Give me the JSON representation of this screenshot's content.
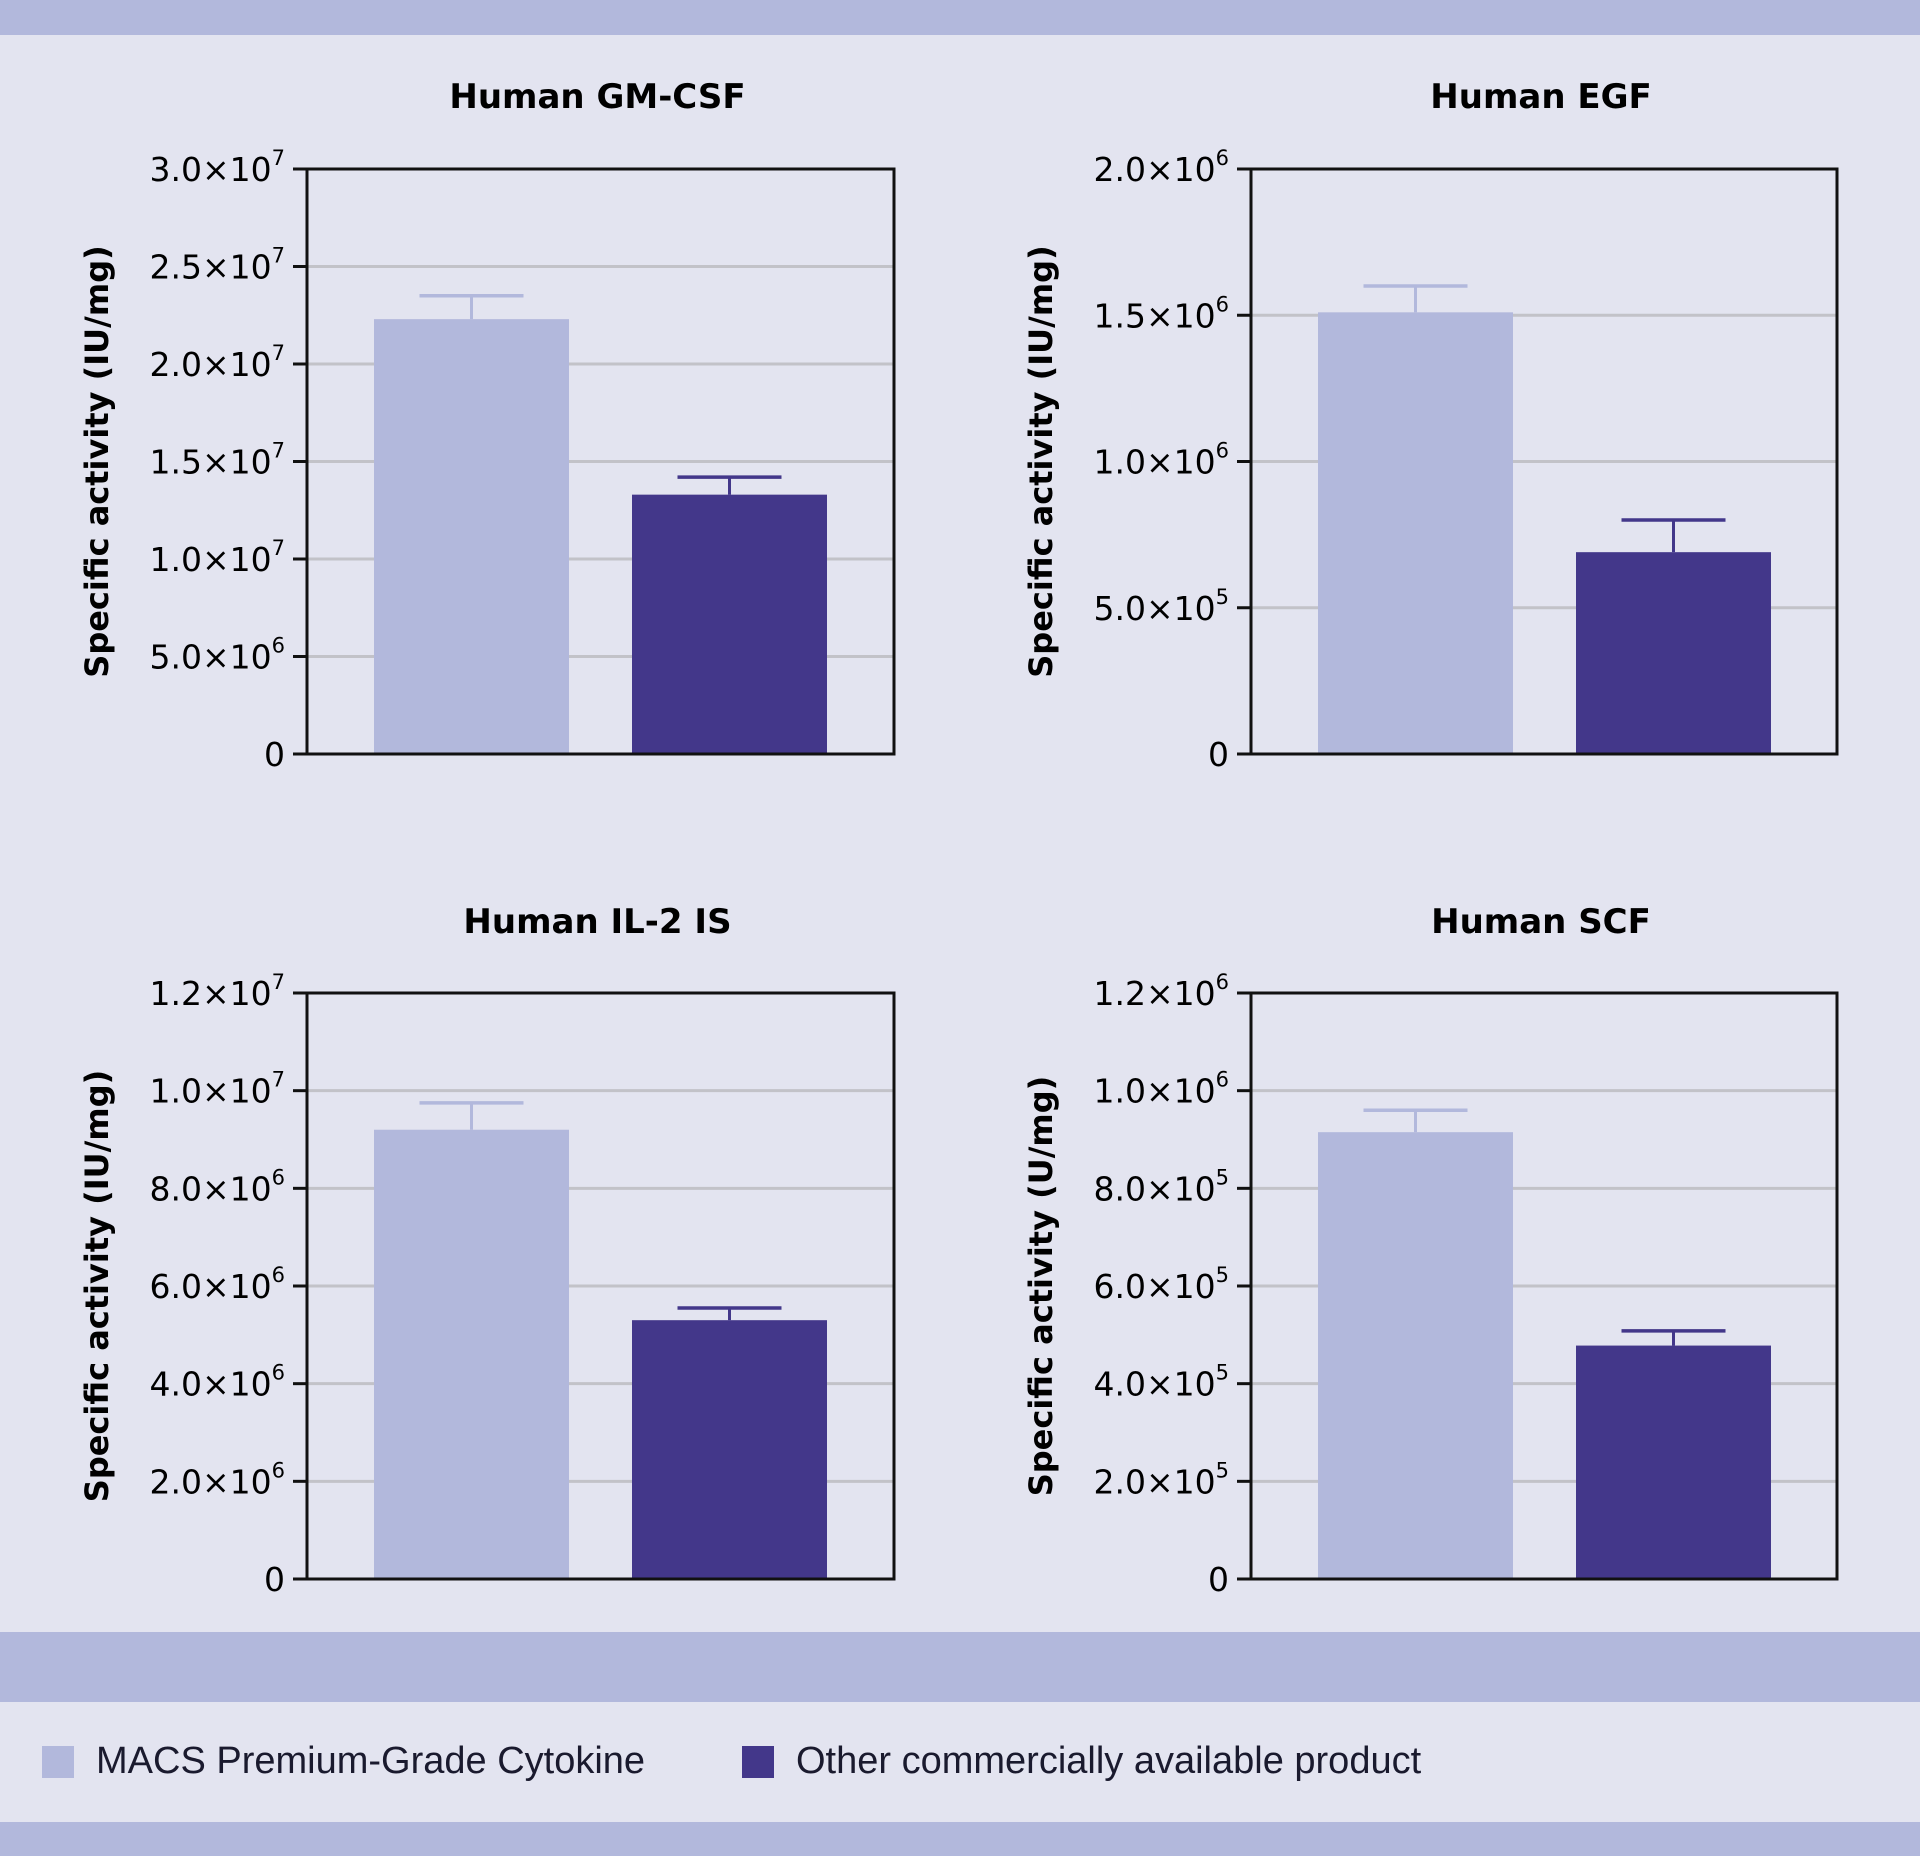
{
  "colors": {
    "background": "#e3e4f0",
    "band": "#b2b8dc",
    "series_light": "#b2b8dc",
    "series_dark": "#43378a",
    "gridline": "#c2c2c8",
    "axis": "#111111"
  },
  "legend": {
    "items": [
      {
        "label": "MACS Premium-Grade Cytokine",
        "color": "#b2b8dc"
      },
      {
        "label": "Other commercially available product",
        "color": "#43378a"
      }
    ]
  },
  "chart_data": [
    {
      "type": "bar",
      "title": "Human GM-CSF",
      "ylabel": "Specific activity (IU/mg)",
      "xlabel": "",
      "ylim": [
        0,
        30000000
      ],
      "yticks": [
        {
          "value": 0,
          "mantissa": "0",
          "exp": ""
        },
        {
          "value": 5000000,
          "mantissa": "5.0×10",
          "exp": "6"
        },
        {
          "value": 10000000,
          "mantissa": "1.0×10",
          "exp": "7"
        },
        {
          "value": 15000000,
          "mantissa": "1.5×10",
          "exp": "7"
        },
        {
          "value": 20000000,
          "mantissa": "2.0×10",
          "exp": "7"
        },
        {
          "value": 25000000,
          "mantissa": "2.5×10",
          "exp": "7"
        },
        {
          "value": 30000000,
          "mantissa": "3.0×10",
          "exp": "7"
        }
      ],
      "series": [
        {
          "name": "MACS Premium-Grade Cytokine",
          "value": 22300000,
          "error": 1200000
        },
        {
          "name": "Other commercially available product",
          "value": 13300000,
          "error": 900000
        }
      ]
    },
    {
      "type": "bar",
      "title": "Human EGF",
      "ylabel": "Specific activity (IU/mg)",
      "xlabel": "",
      "ylim": [
        0,
        2000000
      ],
      "yticks": [
        {
          "value": 0,
          "mantissa": "0",
          "exp": ""
        },
        {
          "value": 500000,
          "mantissa": "5.0×10",
          "exp": "5"
        },
        {
          "value": 1000000,
          "mantissa": "1.0×10",
          "exp": "6"
        },
        {
          "value": 1500000,
          "mantissa": "1.5×10",
          "exp": "6"
        },
        {
          "value": 2000000,
          "mantissa": "2.0×10",
          "exp": "6"
        }
      ],
      "series": [
        {
          "name": "MACS Premium-Grade Cytokine",
          "value": 1510000,
          "error": 90000
        },
        {
          "name": "Other commercially available product",
          "value": 690000,
          "error": 110000
        }
      ]
    },
    {
      "type": "bar",
      "title": "Human IL-2 IS",
      "ylabel": "Specific activity (IU/mg)",
      "xlabel": "",
      "ylim": [
        0,
        12000000
      ],
      "yticks": [
        {
          "value": 0,
          "mantissa": "0",
          "exp": ""
        },
        {
          "value": 2000000,
          "mantissa": "2.0×10",
          "exp": "6"
        },
        {
          "value": 4000000,
          "mantissa": "4.0×10",
          "exp": "6"
        },
        {
          "value": 6000000,
          "mantissa": "6.0×10",
          "exp": "6"
        },
        {
          "value": 8000000,
          "mantissa": "8.0×10",
          "exp": "6"
        },
        {
          "value": 10000000,
          "mantissa": "1.0×10",
          "exp": "7"
        },
        {
          "value": 12000000,
          "mantissa": "1.2×10",
          "exp": "7"
        }
      ],
      "series": [
        {
          "name": "MACS Premium-Grade Cytokine",
          "value": 9200000,
          "error": 550000
        },
        {
          "name": "Other commercially available product",
          "value": 5300000,
          "error": 250000
        }
      ]
    },
    {
      "type": "bar",
      "title": "Human SCF",
      "ylabel": "Specific activity (U/mg)",
      "xlabel": "",
      "ylim": [
        0,
        1200000
      ],
      "yticks": [
        {
          "value": 0,
          "mantissa": "0",
          "exp": ""
        },
        {
          "value": 200000,
          "mantissa": "2.0×10",
          "exp": "5"
        },
        {
          "value": 400000,
          "mantissa": "4.0×10",
          "exp": "5"
        },
        {
          "value": 600000,
          "mantissa": "6.0×10",
          "exp": "5"
        },
        {
          "value": 800000,
          "mantissa": "8.0×10",
          "exp": "5"
        },
        {
          "value": 1000000,
          "mantissa": "1.0×10",
          "exp": "6"
        },
        {
          "value": 1200000,
          "mantissa": "1.2×10",
          "exp": "6"
        }
      ],
      "series": [
        {
          "name": "MACS Premium-Grade Cytokine",
          "value": 915000,
          "error": 45000
        },
        {
          "name": "Other commercially available product",
          "value": 478000,
          "error": 30000
        }
      ]
    }
  ]
}
